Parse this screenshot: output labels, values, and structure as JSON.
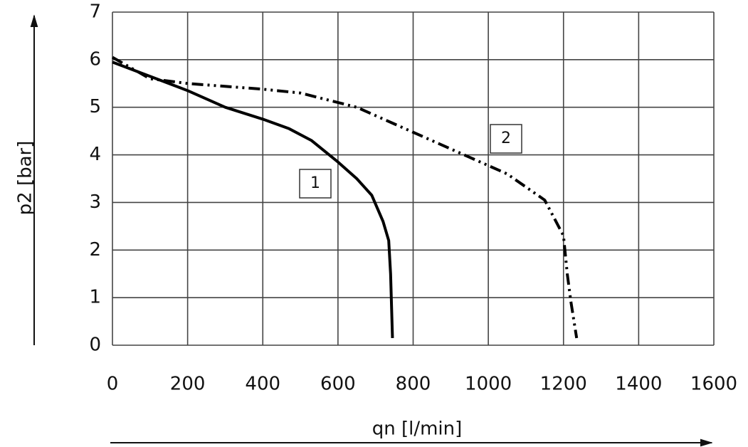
{
  "chart_data": {
    "type": "line",
    "xlabel": "qn [l/min]",
    "ylabel": "p2 [bar]",
    "xlim": [
      0,
      1600
    ],
    "xticks": [
      0,
      200,
      400,
      600,
      800,
      1000,
      1200,
      1400,
      1600
    ],
    "ylim": [
      0,
      7
    ],
    "yticks": [
      0,
      1,
      2,
      3,
      4,
      5,
      6,
      7
    ],
    "grid": true,
    "series": [
      {
        "name": "1",
        "color": "#000000",
        "style": "solid",
        "x": [
          0,
          100,
          200,
          300,
          400,
          470,
          530,
          600,
          650,
          690,
          720,
          735,
          740,
          745
        ],
        "values": [
          5.95,
          5.65,
          5.35,
          5.0,
          4.75,
          4.55,
          4.3,
          3.85,
          3.5,
          3.15,
          2.6,
          2.2,
          1.5,
          0.15
        ]
      },
      {
        "name": "2",
        "color": "#000000",
        "style": "dashdot",
        "x": [
          0,
          100,
          200,
          400,
          500,
          650,
          750,
          850,
          950,
          1050,
          1150,
          1200,
          1210,
          1220,
          1235
        ],
        "values": [
          6.05,
          5.6,
          5.5,
          5.38,
          5.3,
          5.0,
          4.65,
          4.3,
          3.95,
          3.6,
          3.05,
          2.3,
          1.5,
          0.9,
          0.15
        ]
      }
    ]
  }
}
